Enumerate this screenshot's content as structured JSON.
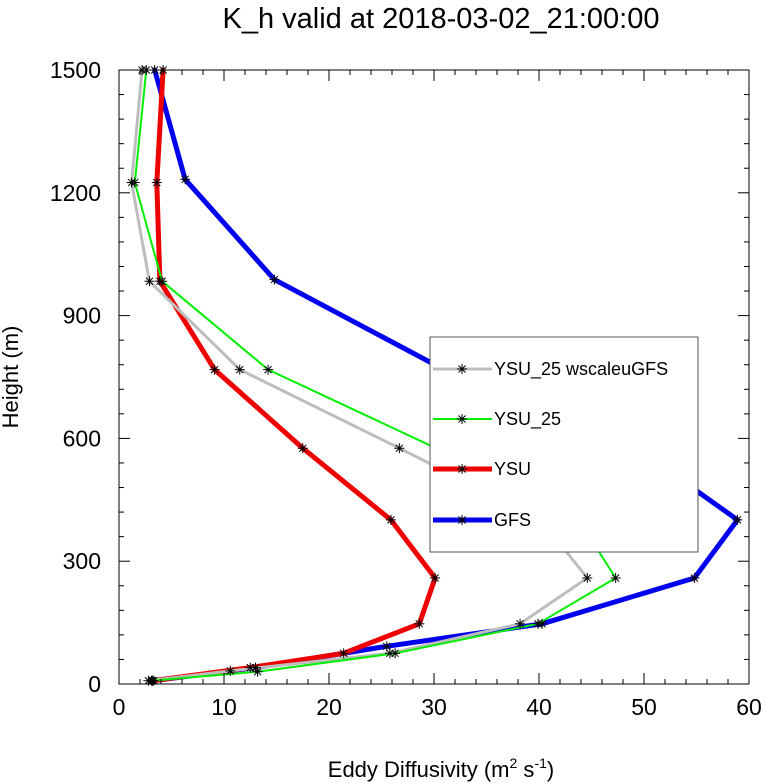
{
  "chart_data": {
    "type": "line",
    "title": "K_h valid at 2018-03-02_21:00:00",
    "xlabel": {
      "main": "Eddy Diffusivity (m",
      "sup1": "2",
      "mid": " s",
      "sup2": "-1",
      "end": ")"
    },
    "ylabel": "Height (m)",
    "xlim": [
      0,
      60
    ],
    "ylim": [
      0,
      1500
    ],
    "xticks": [
      0,
      10,
      20,
      30,
      40,
      50,
      60
    ],
    "yticks": [
      0,
      300,
      600,
      900,
      1200,
      1500
    ],
    "legend_position": "right-middle",
    "series": [
      {
        "name": "YSU_25 wscaleuGFS",
        "color": "#bdbdbd",
        "points": [
          [
            2.8,
            8
          ],
          [
            10.6,
            32
          ],
          [
            25.8,
            75
          ],
          [
            38.2,
            147
          ],
          [
            44.6,
            259
          ],
          [
            40.2,
            401
          ],
          [
            26.7,
            576
          ],
          [
            11.5,
            768
          ],
          [
            2.9,
            984
          ],
          [
            1.2,
            1225
          ],
          [
            2.2,
            1500
          ]
        ]
      },
      {
        "name": "YSU_25",
        "color": "#00ee00",
        "points": [
          [
            3.1,
            8
          ],
          [
            13.2,
            30
          ],
          [
            26.3,
            75
          ],
          [
            39.9,
            147
          ],
          [
            47.3,
            259
          ],
          [
            43.8,
            401
          ],
          [
            30.2,
            576
          ],
          [
            14.2,
            768
          ],
          [
            4.1,
            984
          ],
          [
            1.5,
            1225
          ],
          [
            2.6,
            1500
          ]
        ]
      },
      {
        "name": "YSU",
        "color": "#ee0000",
        "points": [
          [
            3.2,
            8
          ],
          [
            12.5,
            40
          ],
          [
            21.4,
            75
          ],
          [
            28.6,
            147
          ],
          [
            30.1,
            259
          ],
          [
            25.9,
            401
          ],
          [
            17.5,
            576
          ],
          [
            9.1,
            768
          ],
          [
            3.9,
            984
          ],
          [
            3.6,
            1225
          ],
          [
            4.2,
            1500
          ]
        ]
      },
      {
        "name": "GFS",
        "color": "#0000ee",
        "points": [
          [
            3.3,
            8
          ],
          [
            13.0,
            40
          ],
          [
            25.5,
            92
          ],
          [
            40.3,
            147
          ],
          [
            54.8,
            259
          ],
          [
            58.9,
            401
          ],
          [
            49.1,
            580
          ],
          [
            31.2,
            765
          ],
          [
            14.8,
            988
          ],
          [
            6.3,
            1233
          ],
          [
            3.4,
            1500
          ]
        ]
      }
    ]
  }
}
